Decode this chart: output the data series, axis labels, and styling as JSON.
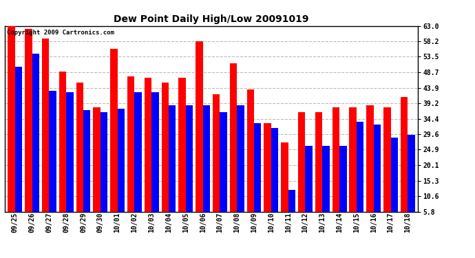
{
  "title": "Dew Point Daily High/Low 20091019",
  "copyright": "Copyright 2009 Cartronics.com",
  "categories": [
    "09/25",
    "09/26",
    "09/27",
    "09/28",
    "09/29",
    "09/30",
    "10/01",
    "10/02",
    "10/03",
    "10/04",
    "10/05",
    "10/06",
    "10/07",
    "10/08",
    "10/09",
    "10/10",
    "10/11",
    "10/12",
    "10/13",
    "10/14",
    "10/15",
    "10/16",
    "10/17",
    "10/18"
  ],
  "highs": [
    63.0,
    62.0,
    59.0,
    49.0,
    45.5,
    38.0,
    56.0,
    47.5,
    47.0,
    45.5,
    47.0,
    58.2,
    42.0,
    51.5,
    43.5,
    33.0,
    27.0,
    36.5,
    36.5,
    38.0,
    38.0,
    38.5,
    38.0,
    41.0
  ],
  "lows": [
    50.5,
    54.5,
    43.0,
    42.5,
    37.0,
    36.5,
    37.5,
    42.5,
    42.5,
    38.5,
    38.5,
    38.5,
    36.5,
    38.5,
    33.0,
    31.5,
    12.5,
    26.0,
    26.0,
    26.0,
    33.5,
    32.5,
    28.5,
    29.5
  ],
  "bar_width": 0.42,
  "high_color": "#ff0000",
  "low_color": "#0000ff",
  "bg_color": "#ffffff",
  "grid_color": "#bbbbbb",
  "yticks": [
    5.8,
    10.6,
    15.3,
    20.1,
    24.9,
    29.6,
    34.4,
    39.2,
    43.9,
    48.7,
    53.5,
    58.2,
    63.0
  ],
  "ymin": 5.8,
  "ymax": 63.0,
  "title_fontsize": 10,
  "tick_fontsize": 7,
  "copyright_fontsize": 6.5
}
